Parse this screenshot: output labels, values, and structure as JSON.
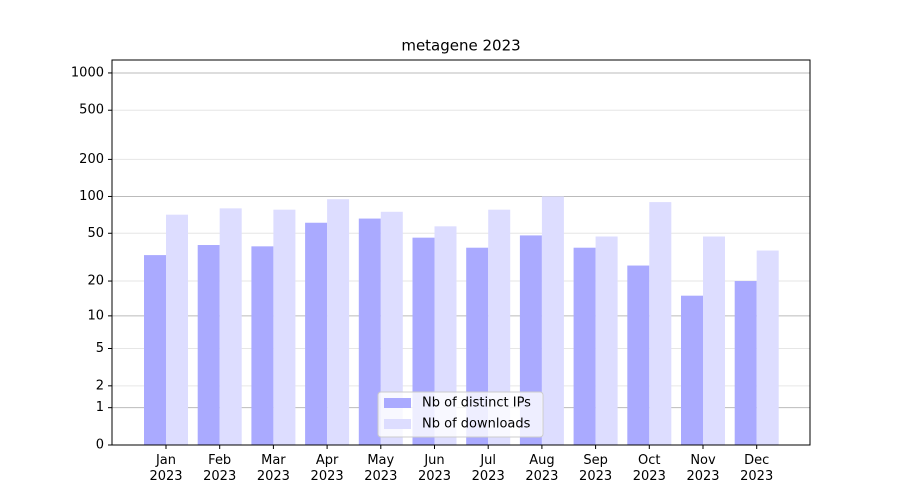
{
  "chart_data": {
    "type": "bar",
    "title": "metagene 2023",
    "categories": [
      "Jan 2023",
      "Feb 2023",
      "Mar 2023",
      "Apr 2023",
      "May 2023",
      "Jun 2023",
      "Jul 2023",
      "Aug 2023",
      "Sep 2023",
      "Oct 2023",
      "Nov 2023",
      "Dec 2023"
    ],
    "series": [
      {
        "name": "Nb of distinct IPs",
        "color": "#aaaaff",
        "values": [
          33,
          40,
          39,
          61,
          66,
          46,
          38,
          48,
          38,
          27,
          15,
          20
        ]
      },
      {
        "name": "Nb of downloads",
        "color": "#ddddff",
        "values": [
          71,
          80,
          78,
          95,
          75,
          57,
          78,
          100,
          47,
          90,
          47,
          36
        ]
      }
    ],
    "yscale": "log1p",
    "ylim": [
      0,
      1272
    ],
    "yticks": [
      0,
      1,
      2,
      5,
      10,
      20,
      50,
      100,
      200,
      500,
      1000
    ],
    "grid": true,
    "legend": "lower center"
  }
}
